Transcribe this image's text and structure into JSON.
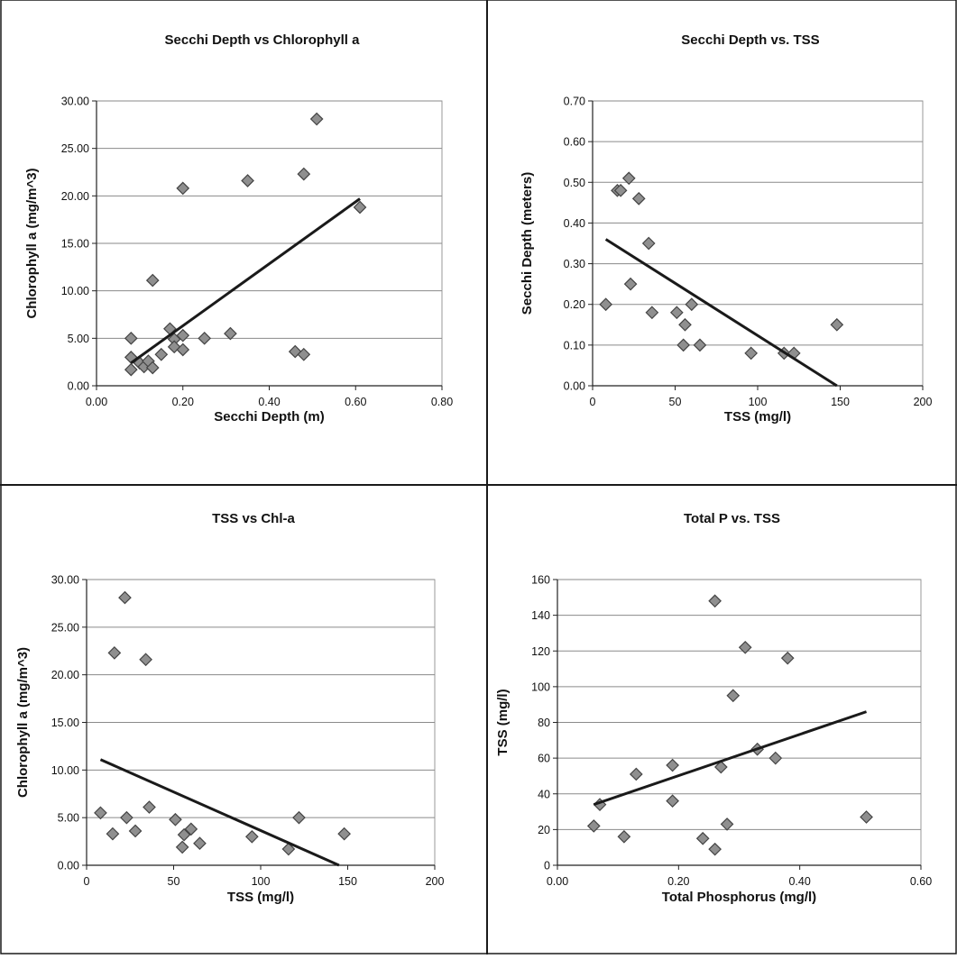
{
  "chart_data": [
    {
      "type": "scatter",
      "title": "Secchi Depth vs Chlorophyll a",
      "xlabel": "Secchi Depth (m)",
      "ylabel": "Chlorophyll a (mg/m^3)",
      "xlim": [
        0,
        0.8
      ],
      "ylim": [
        0,
        30
      ],
      "x_ticks": [
        "0.00",
        "0.20",
        "0.40",
        "0.60",
        "0.80"
      ],
      "y_ticks": [
        "0.00",
        "5.00",
        "10.00",
        "15.00",
        "20.00",
        "25.00",
        "30.00"
      ],
      "grid": "horizontal",
      "points": [
        [
          0.08,
          5.0
        ],
        [
          0.08,
          3.0
        ],
        [
          0.08,
          1.7
        ],
        [
          0.1,
          2.4
        ],
        [
          0.11,
          2.0
        ],
        [
          0.12,
          2.6
        ],
        [
          0.13,
          1.9
        ],
        [
          0.13,
          11.1
        ],
        [
          0.15,
          3.3
        ],
        [
          0.17,
          6.0
        ],
        [
          0.18,
          4.9
        ],
        [
          0.18,
          4.1
        ],
        [
          0.2,
          5.3
        ],
        [
          0.2,
          3.8
        ],
        [
          0.2,
          20.8
        ],
        [
          0.25,
          5.0
        ],
        [
          0.31,
          5.5
        ],
        [
          0.35,
          21.6
        ],
        [
          0.46,
          3.6
        ],
        [
          0.48,
          3.3
        ],
        [
          0.48,
          22.3
        ],
        [
          0.51,
          28.1
        ],
        [
          0.61,
          18.8
        ]
      ],
      "trendline": [
        [
          0.08,
          2.4
        ],
        [
          0.61,
          19.7
        ]
      ]
    },
    {
      "type": "scatter",
      "title": "Secchi Depth vs. TSS",
      "xlabel": "TSS (mg/l)",
      "ylabel": "Secchi Depth (meters)",
      "xlim": [
        0,
        200
      ],
      "ylim": [
        0,
        0.7
      ],
      "x_ticks": [
        "0",
        "50",
        "100",
        "150",
        "200"
      ],
      "y_ticks": [
        "0.00",
        "0.10",
        "0.20",
        "0.30",
        "0.40",
        "0.50",
        "0.60",
        "0.70"
      ],
      "grid": "horizontal",
      "points": [
        [
          8,
          0.2
        ],
        [
          15,
          0.48
        ],
        [
          17,
          0.48
        ],
        [
          22,
          0.51
        ],
        [
          23,
          0.25
        ],
        [
          28,
          0.46
        ],
        [
          34,
          0.35
        ],
        [
          36,
          0.18
        ],
        [
          51,
          0.18
        ],
        [
          55,
          0.1
        ],
        [
          56,
          0.15
        ],
        [
          60,
          0.2
        ],
        [
          65,
          0.1
        ],
        [
          96,
          0.08
        ],
        [
          116,
          0.08
        ],
        [
          122,
          0.08
        ],
        [
          148,
          0.15
        ]
      ],
      "trendline": [
        [
          8,
          0.36
        ],
        [
          148,
          0.0
        ]
      ]
    },
    {
      "type": "scatter",
      "title": "TSS vs Chl-a",
      "xlabel": "TSS (mg/l)",
      "ylabel": "Chlorophyll a (mg/m^3)",
      "xlim": [
        0,
        200
      ],
      "ylim": [
        0,
        30
      ],
      "x_ticks": [
        "0",
        "50",
        "100",
        "150",
        "200"
      ],
      "y_ticks": [
        "0.00",
        "5.00",
        "10.00",
        "15.00",
        "20.00",
        "25.00",
        "30.00"
      ],
      "grid": "horizontal",
      "points": [
        [
          8,
          5.5
        ],
        [
          15,
          3.3
        ],
        [
          16,
          22.3
        ],
        [
          22,
          28.1
        ],
        [
          23,
          5.0
        ],
        [
          28,
          3.6
        ],
        [
          34,
          21.6
        ],
        [
          36,
          6.1
        ],
        [
          51,
          4.8
        ],
        [
          55,
          1.9
        ],
        [
          56,
          3.2
        ],
        [
          60,
          3.8
        ],
        [
          65,
          2.3
        ],
        [
          95,
          3.0
        ],
        [
          116,
          1.7
        ],
        [
          122,
          5.0
        ],
        [
          148,
          3.3
        ]
      ],
      "trendline": [
        [
          8,
          11.1
        ],
        [
          145,
          0.0
        ]
      ]
    },
    {
      "type": "scatter",
      "title": "Total P vs. TSS",
      "xlabel": "Total Phosphorus (mg/l)",
      "ylabel": "TSS (mg/l)",
      "xlim": [
        0,
        0.6
      ],
      "ylim": [
        0,
        160
      ],
      "x_ticks": [
        "0.00",
        "0.20",
        "0.40",
        "0.60"
      ],
      "y_ticks": [
        "0",
        "20",
        "40",
        "60",
        "80",
        "100",
        "120",
        "140",
        "160"
      ],
      "grid": "horizontal",
      "points": [
        [
          0.06,
          22
        ],
        [
          0.07,
          34
        ],
        [
          0.11,
          16
        ],
        [
          0.13,
          51
        ],
        [
          0.19,
          56
        ],
        [
          0.19,
          36
        ],
        [
          0.24,
          15
        ],
        [
          0.26,
          9
        ],
        [
          0.26,
          148
        ],
        [
          0.27,
          55
        ],
        [
          0.28,
          23
        ],
        [
          0.29,
          95
        ],
        [
          0.31,
          122
        ],
        [
          0.33,
          65
        ],
        [
          0.36,
          60
        ],
        [
          0.38,
          116
        ],
        [
          0.51,
          27
        ]
      ],
      "trendline": [
        [
          0.06,
          34
        ],
        [
          0.51,
          86
        ]
      ]
    }
  ],
  "colors": {
    "marker_fill": "#8f8f8f",
    "marker_stroke": "#444444",
    "trendline": "#1a1a1a",
    "gridline": "#8a8a8a",
    "border": "#1a1a1a"
  }
}
